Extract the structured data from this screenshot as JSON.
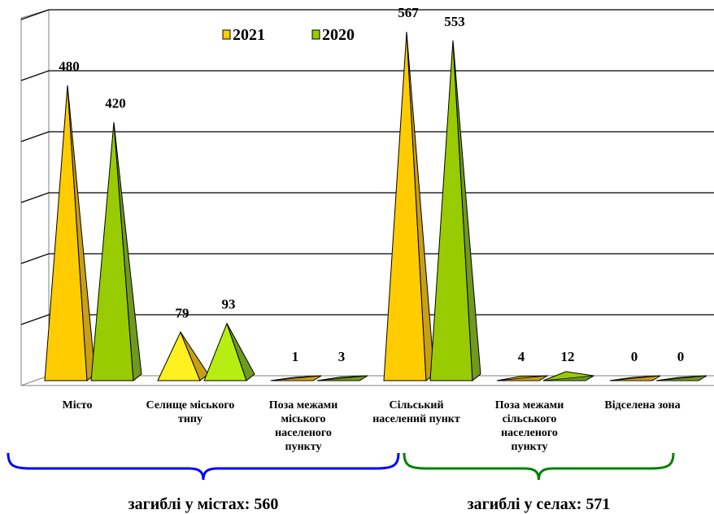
{
  "chart_data": {
    "type": "bar",
    "categories": [
      [
        "Місто"
      ],
      [
        "Селище міського",
        "типу"
      ],
      [
        "Поза межами",
        "міського",
        "населеного",
        "пункту"
      ],
      [
        "Сільський",
        "населений пункт"
      ],
      [
        "Поза межами",
        "сільського",
        "населеного",
        "пункту"
      ],
      [
        "Відселена зона"
      ]
    ],
    "series": [
      {
        "name": "2021",
        "values": [
          480,
          79,
          1,
          567,
          4,
          0
        ],
        "color": "#FFCC00",
        "shade": "#C9A015",
        "light": "#FFF020"
      },
      {
        "name": "2020",
        "values": [
          420,
          93,
          3,
          553,
          12,
          0
        ],
        "color": "#99CC00",
        "shade": "#6E9A1E",
        "light": "#B5EE10"
      }
    ],
    "ylim": [
      0,
      600
    ],
    "grid": true,
    "legend": "top-left",
    "bar_style": "3d-pyramid",
    "annotations": [
      {
        "label": "загиблі у містах: 560",
        "group": [
          0,
          1,
          2
        ],
        "brace_color": "#0000FF"
      },
      {
        "label": "загиблі у селах: 571",
        "group": [
          3,
          4,
          5
        ],
        "brace_color": "#008000"
      }
    ]
  }
}
